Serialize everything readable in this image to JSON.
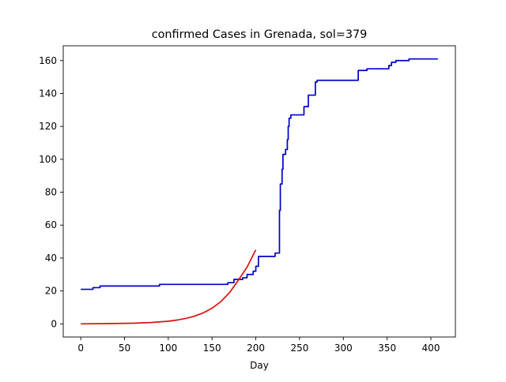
{
  "chart_data": {
    "type": "line",
    "title": "confirmed Cases in Grenada, sol=379",
    "xlabel": "Day",
    "ylabel": "",
    "xlim": [
      -20,
      428
    ],
    "ylim": [
      -8,
      169
    ],
    "xticks": [
      0,
      50,
      100,
      150,
      200,
      250,
      300,
      350,
      400
    ],
    "yticks": [
      0,
      20,
      40,
      60,
      80,
      100,
      120,
      140,
      160
    ],
    "grid": false,
    "legend": "none",
    "series": [
      {
        "color": "#0000cc",
        "style": "step",
        "x": [
          0,
          14,
          22,
          90,
          152,
          162,
          168,
          175,
          185,
          190,
          197,
          200,
          203,
          222,
          227,
          228,
          230,
          231,
          234,
          236,
          237,
          238,
          240,
          250,
          255,
          257,
          260,
          264,
          267,
          268,
          270,
          278,
          287,
          317,
          320,
          327,
          333,
          352,
          353,
          355,
          360,
          375,
          377,
          408
        ],
        "y": [
          21,
          22,
          23,
          24,
          24,
          24,
          25,
          27,
          28,
          30,
          32,
          35,
          41,
          43,
          69,
          85,
          94,
          103,
          106,
          112,
          120,
          125,
          127,
          127,
          132,
          132,
          139,
          139,
          139,
          147,
          148,
          148,
          148,
          154,
          154,
          155,
          155,
          157,
          157,
          159,
          160,
          161,
          161,
          161
        ]
      },
      {
        "color": "#dd1111",
        "style": "line",
        "x": [
          0,
          20,
          40,
          60,
          80,
          100,
          110,
          120,
          130,
          140,
          150,
          160,
          170,
          180,
          190,
          200
        ],
        "y": [
          0,
          0.1,
          0.2,
          0.4,
          0.8,
          1.6,
          2.3,
          3.3,
          4.7,
          6.7,
          9.5,
          13.5,
          19.0,
          26.5,
          34.5,
          45.0
        ]
      }
    ]
  }
}
